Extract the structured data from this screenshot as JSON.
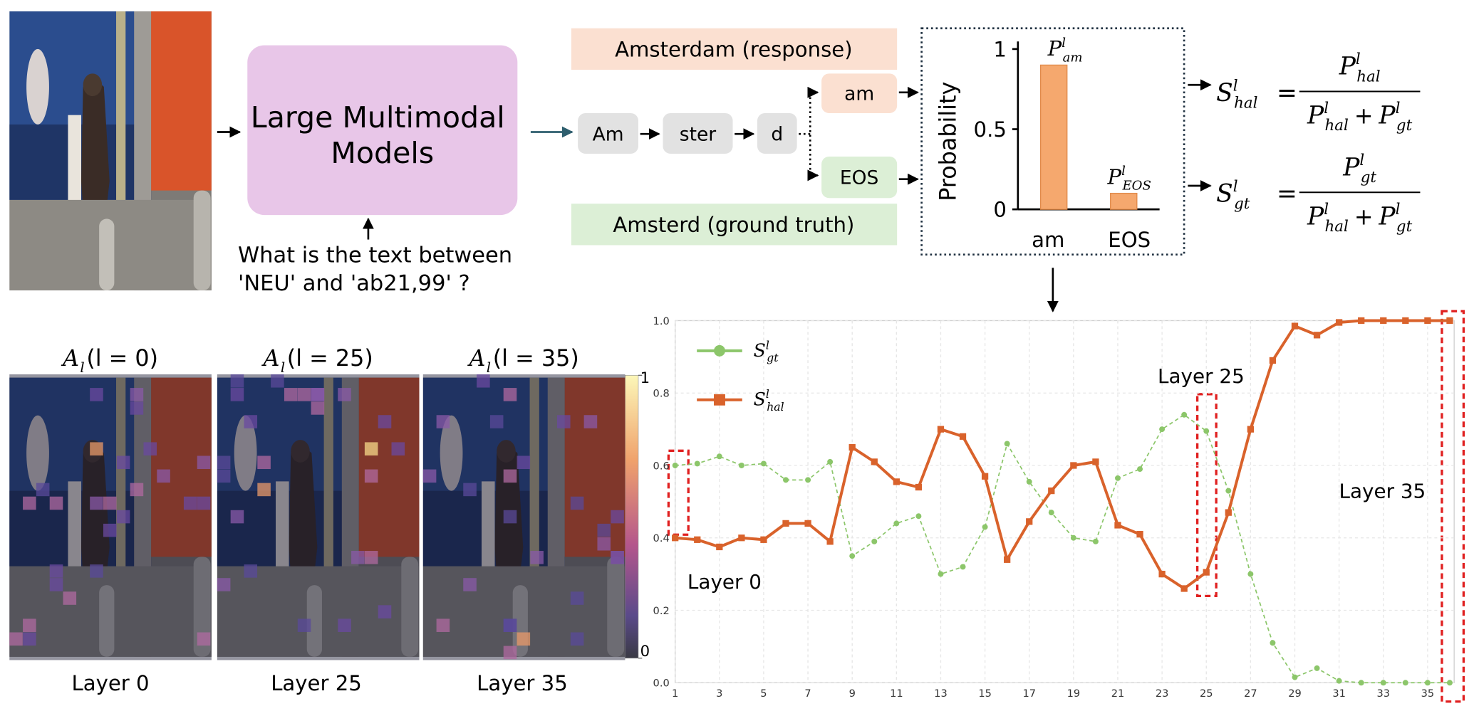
{
  "model_box": [
    "Large Multimodal",
    "Models"
  ],
  "question": [
    "What is the text between",
    "'NEU' and 'ab21,99' ?"
  ],
  "response_label": "Amsterdam (response)",
  "ground_truth_label": "Amsterd (ground truth)",
  "tokens": [
    "Am",
    "ster",
    "d"
  ],
  "candidates": [
    "am",
    "EOS"
  ],
  "formulas": [
    {
      "lhs": {
        "base": "S",
        "sub": "hal",
        "sup": "l"
      },
      "eq": "=",
      "numerator": {
        "base": "P",
        "sub": "hal",
        "sup": "l"
      },
      "denominator": [
        {
          "base": "P",
          "sub": "hal",
          "sup": "l"
        },
        {
          "op": "+"
        },
        {
          "base": "P",
          "sub": "gt",
          "sup": "l"
        }
      ]
    },
    {
      "lhs": {
        "base": "S",
        "sub": "gt",
        "sup": "l"
      },
      "eq": "=",
      "numerator": {
        "base": "P",
        "sub": "gt",
        "sup": "l"
      },
      "denominator": [
        {
          "base": "P",
          "sub": "hal",
          "sup": "l"
        },
        {
          "op": "+"
        },
        {
          "base": "P",
          "sub": "gt",
          "sup": "l"
        }
      ]
    }
  ],
  "heatmaps": {
    "titles": [
      {
        "base": "A",
        "sub": "l",
        "arg": "(l = 0)"
      },
      {
        "base": "A",
        "sub": "l",
        "arg": "(l = 25)"
      },
      {
        "base": "A",
        "sub": "l",
        "arg": "(l = 35)"
      }
    ],
    "captions": [
      "Layer 0",
      "Layer 25",
      "Layer 35"
    ],
    "colorbar_ticks": [
      1,
      0
    ]
  },
  "chart_data": [
    {
      "type": "bar",
      "ylabel": "Probability",
      "categories": [
        "am",
        "EOS"
      ],
      "values": [
        0.9,
        0.1
      ],
      "bar_labels": [
        {
          "base": "P",
          "sub": "am",
          "sup": "l"
        },
        {
          "base": "P",
          "sub": "EOS",
          "sup": "l"
        }
      ],
      "color": "#f5a86e",
      "ylim": [
        0,
        1
      ],
      "yticks": [
        0,
        0.5,
        1
      ]
    },
    {
      "type": "line",
      "x": [
        1,
        2,
        3,
        4,
        5,
        6,
        7,
        8,
        9,
        10,
        11,
        12,
        13,
        14,
        15,
        16,
        17,
        18,
        19,
        20,
        21,
        22,
        23,
        24,
        25,
        26,
        27,
        28,
        29,
        30,
        31,
        32,
        33,
        34,
        35,
        36
      ],
      "xlim": [
        1,
        36.2
      ],
      "xticks": [
        1,
        3,
        5,
        7,
        9,
        11,
        13,
        15,
        17,
        19,
        21,
        23,
        25,
        27,
        29,
        31,
        33,
        35
      ],
      "ylim": [
        0,
        1
      ],
      "yticks": [
        {
          "value": 0,
          "label": "0.0"
        },
        0.2,
        0.4,
        0.6,
        0.8,
        {
          "value": 1,
          "label": "1.0"
        }
      ],
      "grid": true,
      "series": [
        {
          "name": {
            "base": "S",
            "sub": "gt",
            "sup": "l"
          },
          "color": "#8cc66a",
          "marker": "circle",
          "dashed": true,
          "values": [
            0.6,
            0.605,
            0.625,
            0.6,
            0.605,
            0.56,
            0.56,
            0.61,
            0.35,
            0.39,
            0.44,
            0.46,
            0.3,
            0.32,
            0.43,
            0.66,
            0.555,
            0.47,
            0.4,
            0.39,
            0.565,
            0.59,
            0.7,
            0.74,
            0.695,
            0.53,
            0.3,
            0.11,
            0.015,
            0.04,
            0.005,
            0,
            0,
            0,
            0,
            0
          ]
        },
        {
          "name": {
            "base": "S",
            "sub": "hal",
            "sup": "l"
          },
          "color": "#d9622b",
          "marker": "square",
          "dashed": false,
          "values": [
            0.4,
            0.395,
            0.375,
            0.4,
            0.395,
            0.44,
            0.44,
            0.39,
            0.65,
            0.61,
            0.555,
            0.54,
            0.7,
            0.68,
            0.57,
            0.34,
            0.445,
            0.53,
            0.6,
            0.61,
            0.435,
            0.41,
            0.3,
            0.26,
            0.305,
            0.47,
            0.7,
            0.89,
            0.985,
            0.96,
            0.995,
            1,
            1,
            1,
            1,
            1
          ]
        }
      ],
      "annotations": [
        "Layer 0",
        "Layer 25",
        "Layer 35"
      ]
    }
  ]
}
